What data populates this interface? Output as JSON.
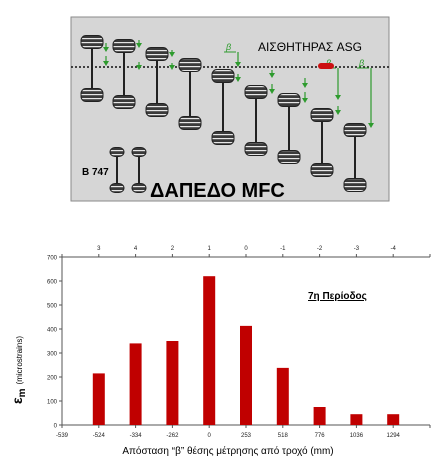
{
  "diagram": {
    "sensor_label": "ΑΙΣΘΗΤΗΡΑΣ ASG",
    "aircraft_label": "Β 747",
    "floor_title": "ΔΑΠΕΔΟ MFC",
    "beta_label": "β",
    "colors": {
      "panel_bg": "#d6d6d6",
      "gear": "#333333",
      "arrow": "#2e9b2e",
      "sensor": "#cc1111",
      "text": "#000000"
    }
  },
  "chart_data": {
    "type": "bar",
    "title": "7η Περίοδος",
    "xlabel": "Απόσταση “β” θέσης μέτρησης από τροχό (mm)",
    "ylabel_symbol": "ε",
    "ylabel_subscript": "m",
    "ylabel_unit": "(microstrains)",
    "categories": [
      "-539",
      "-524",
      "-334",
      "-262",
      "0",
      "253",
      "518",
      "776",
      "1036",
      "1294"
    ],
    "top_labels": [
      "",
      "3",
      "4",
      "2",
      "1",
      "0",
      "-1",
      "-2",
      "-3",
      "-4"
    ],
    "values": [
      null,
      215,
      340,
      350,
      620,
      413,
      238,
      75,
      45,
      45
    ],
    "ylim": [
      0,
      700
    ],
    "yticks": [
      0,
      100,
      200,
      300,
      400,
      500,
      600,
      700
    ],
    "bar_color": "#c00000",
    "grid": false
  }
}
